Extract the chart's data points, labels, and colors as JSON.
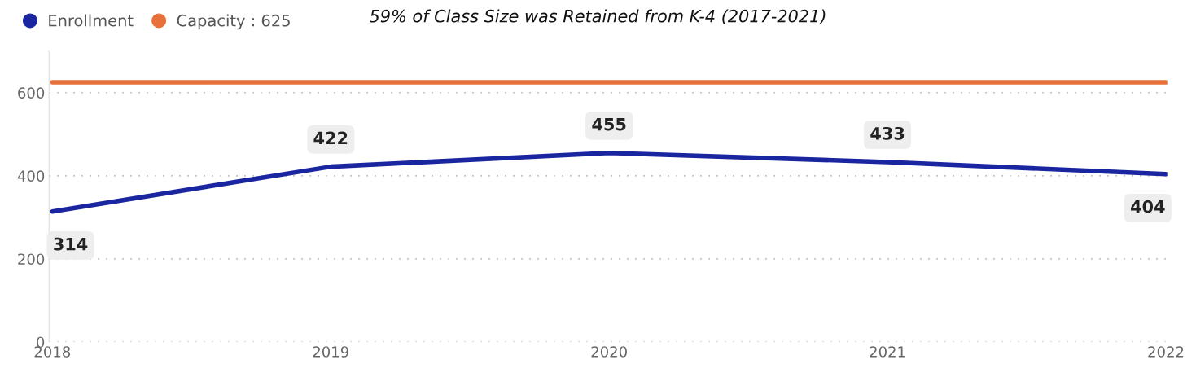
{
  "chart_data": {
    "type": "line",
    "title": "59% of Class Size was Retained from K-4 (2017-2021)",
    "categories": [
      "2018",
      "2019",
      "2020",
      "2021",
      "2022"
    ],
    "series": [
      {
        "name": "Enrollment",
        "color": "#1a25a0",
        "values": [
          314,
          422,
          455,
          433,
          404
        ],
        "data_labels": true
      },
      {
        "name": "Capacity : 625",
        "color": "#e8703a",
        "values": [
          625,
          625,
          625,
          625,
          625
        ]
      }
    ],
    "ylim": [
      0,
      700
    ],
    "yticks": [
      0,
      200,
      400,
      600
    ],
    "grid": "y",
    "legend": "top left",
    "marker": "none",
    "line_style": "solid"
  }
}
